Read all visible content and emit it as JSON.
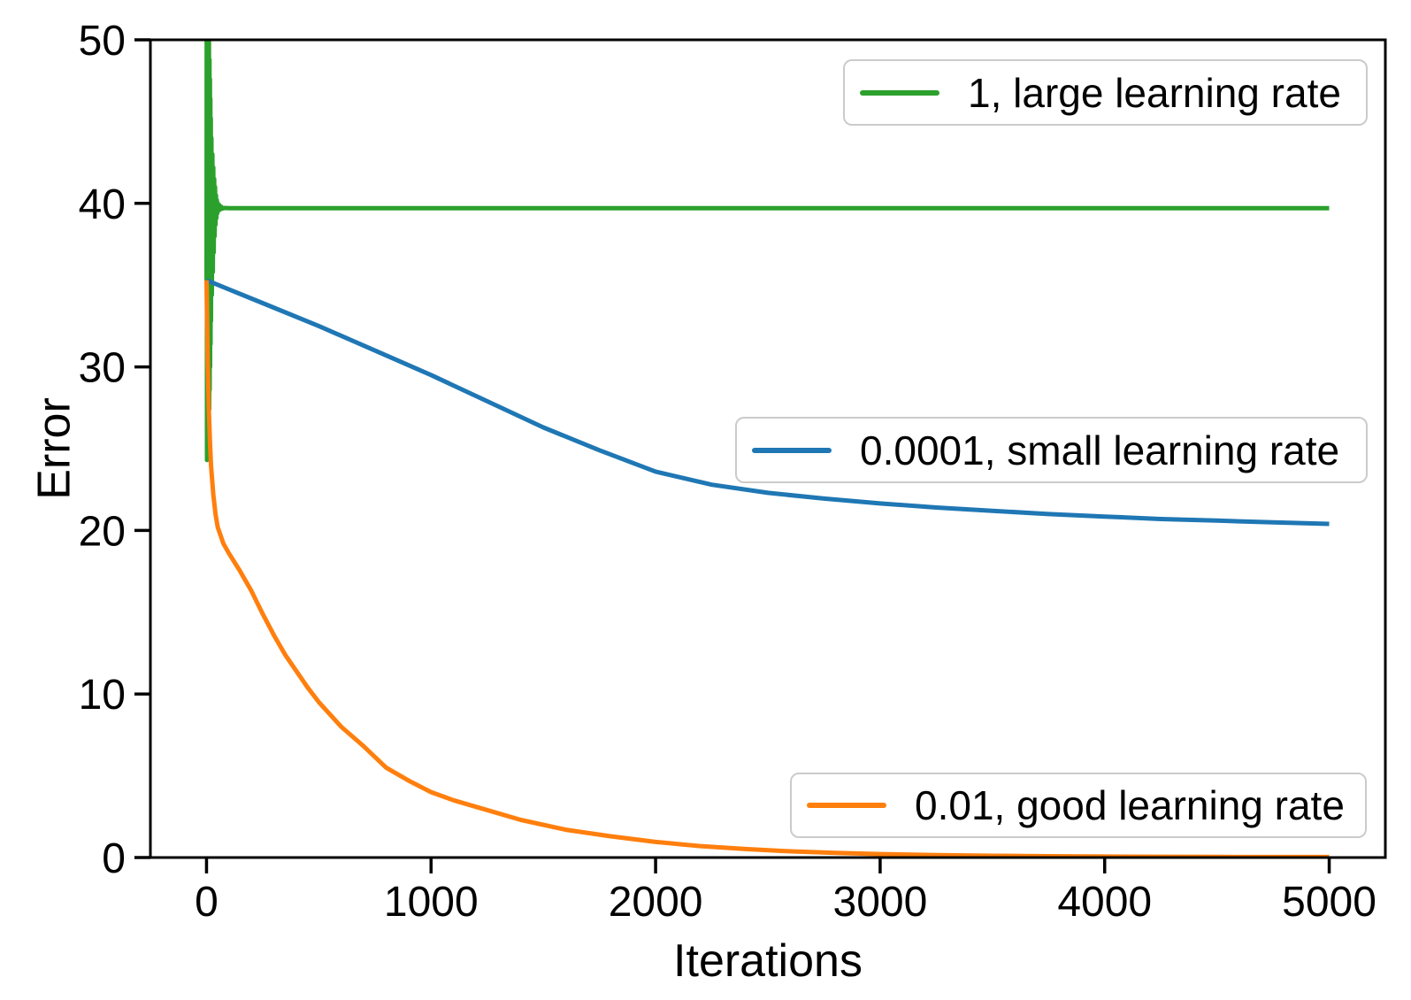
{
  "figure": {
    "background": "#ffffff",
    "axes_edge_color": "#000000",
    "legend_border_color": "#cbcbcb"
  },
  "chart_data": {
    "type": "line",
    "title": "",
    "xlabel": "Iterations",
    "ylabel": "Error",
    "xlim": [
      -250,
      5250
    ],
    "ylim": [
      0,
      50
    ],
    "x_ticks": [
      0,
      1000,
      2000,
      3000,
      4000,
      5000
    ],
    "y_ticks": [
      0,
      10,
      20,
      30,
      40,
      50
    ],
    "grid": false,
    "legend_position": "three separate boxes stacked at right: upper, middle, lower",
    "series": [
      {
        "name": "1, large learning rate",
        "color": "#2ca02c",
        "description": "diverging oscillation at start (clipped above 50, dips to ~24), settles flat at ~39.7",
        "points": [
          [
            0,
            35.3
          ],
          [
            1,
            55
          ],
          [
            2,
            24.3
          ],
          [
            3,
            54
          ],
          [
            4,
            24.6
          ],
          [
            5,
            53
          ],
          [
            6,
            25
          ],
          [
            7,
            52
          ],
          [
            8,
            25.6
          ],
          [
            9,
            51
          ],
          [
            10,
            26.4
          ],
          [
            11,
            50
          ],
          [
            12,
            27.4
          ],
          [
            13,
            48.8
          ],
          [
            14,
            28.6
          ],
          [
            15,
            47.6
          ],
          [
            16,
            30
          ],
          [
            17,
            46.4
          ],
          [
            18,
            31.4
          ],
          [
            19,
            45.2
          ],
          [
            20,
            32.8
          ],
          [
            22,
            44.0
          ],
          [
            24,
            34.4
          ],
          [
            26,
            43.0
          ],
          [
            28,
            35.8
          ],
          [
            30,
            42.2
          ],
          [
            32,
            37.0
          ],
          [
            34,
            41.5
          ],
          [
            36,
            38.0
          ],
          [
            38,
            41.0
          ],
          [
            40,
            38.7
          ],
          [
            42,
            40.5
          ],
          [
            44,
            39.1
          ],
          [
            46,
            40.2
          ],
          [
            48,
            39.4
          ],
          [
            50,
            40.0
          ],
          [
            53,
            39.55
          ],
          [
            56,
            39.9
          ],
          [
            60,
            39.62
          ],
          [
            65,
            39.8
          ],
          [
            70,
            39.68
          ],
          [
            80,
            39.72
          ],
          [
            100,
            39.7
          ],
          [
            5000,
            39.7
          ]
        ]
      },
      {
        "name": "0.0001, small learning rate",
        "color": "#1f77b4",
        "description": "slow nearly-linear decrease from ~35.3, knee near x=2300, ends ~20.4",
        "points": [
          [
            0,
            35.3
          ],
          [
            250,
            33.9
          ],
          [
            500,
            32.5
          ],
          [
            750,
            31.0
          ],
          [
            1000,
            29.5
          ],
          [
            1250,
            27.9
          ],
          [
            1500,
            26.3
          ],
          [
            1750,
            24.9
          ],
          [
            2000,
            23.6
          ],
          [
            2250,
            22.8
          ],
          [
            2500,
            22.3
          ],
          [
            2750,
            21.95
          ],
          [
            3000,
            21.65
          ],
          [
            3250,
            21.4
          ],
          [
            3500,
            21.2
          ],
          [
            3750,
            21.0
          ],
          [
            4000,
            20.85
          ],
          [
            4250,
            20.7
          ],
          [
            4500,
            20.6
          ],
          [
            4750,
            20.5
          ],
          [
            5000,
            20.4
          ]
        ]
      },
      {
        "name": "0.01, good learning rate",
        "color": "#ff7f0e",
        "description": "fast exponential-like decay to ~0",
        "points": [
          [
            0,
            35.3
          ],
          [
            5,
            30.5
          ],
          [
            10,
            27.5
          ],
          [
            15,
            25.5
          ],
          [
            20,
            24.0
          ],
          [
            30,
            22.2
          ],
          [
            40,
            21.0
          ],
          [
            50,
            20.2
          ],
          [
            75,
            19.2
          ],
          [
            100,
            18.6
          ],
          [
            150,
            17.5
          ],
          [
            200,
            16.3
          ],
          [
            250,
            14.9
          ],
          [
            300,
            13.6
          ],
          [
            350,
            12.4
          ],
          [
            400,
            11.4
          ],
          [
            450,
            10.4
          ],
          [
            500,
            9.5
          ],
          [
            600,
            8.0
          ],
          [
            700,
            6.8
          ],
          [
            800,
            5.5
          ],
          [
            900,
            4.7
          ],
          [
            1000,
            4.0
          ],
          [
            1100,
            3.5
          ],
          [
            1200,
            3.1
          ],
          [
            1400,
            2.3
          ],
          [
            1600,
            1.7
          ],
          [
            1800,
            1.3
          ],
          [
            2000,
            0.95
          ],
          [
            2200,
            0.7
          ],
          [
            2400,
            0.52
          ],
          [
            2600,
            0.38
          ],
          [
            2800,
            0.28
          ],
          [
            3000,
            0.21
          ],
          [
            3250,
            0.15
          ],
          [
            3500,
            0.11
          ],
          [
            3750,
            0.08
          ],
          [
            4000,
            0.06
          ],
          [
            4250,
            0.05
          ],
          [
            4500,
            0.04
          ],
          [
            4750,
            0.03
          ],
          [
            5000,
            0.03
          ]
        ]
      }
    ],
    "legends": [
      {
        "label": "1, large learning rate",
        "color": "#2ca02c"
      },
      {
        "label": "0.0001, small learning rate",
        "color": "#1f77b4"
      },
      {
        "label": "0.01, good learning rate",
        "color": "#ff7f0e"
      }
    ]
  }
}
